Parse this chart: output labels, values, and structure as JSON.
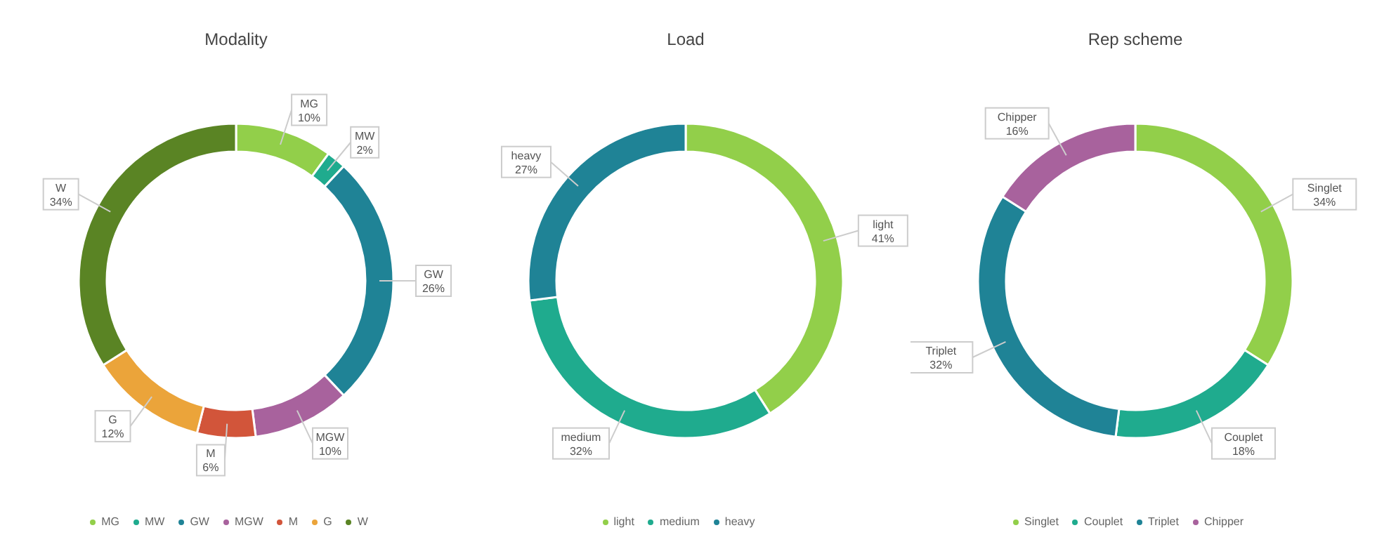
{
  "chart_data": [
    {
      "type": "donut",
      "title": "Modality",
      "categories": [
        "MG",
        "MW",
        "GW",
        "MGW",
        "M",
        "G",
        "W"
      ],
      "values": [
        10,
        2,
        26,
        10,
        6,
        12,
        34
      ],
      "value_labels": [
        "10%",
        "2%",
        "26%",
        "10%",
        "6%",
        "12%",
        "34%"
      ],
      "colors": [
        "#92cf4a",
        "#1fab8e",
        "#1f8396",
        "#a8629d",
        "#d2553a",
        "#eba43a",
        "#5a8424"
      ],
      "legend": "bottom"
    },
    {
      "type": "donut",
      "title": "Load",
      "categories": [
        "light",
        "medium",
        "heavy"
      ],
      "values": [
        41,
        32,
        27
      ],
      "value_labels": [
        "41%",
        "32%",
        "27%"
      ],
      "colors": [
        "#92cf4a",
        "#1fab8e",
        "#1f8396"
      ],
      "legend": "bottom"
    },
    {
      "type": "donut",
      "title": "Rep scheme",
      "categories": [
        "Singlet",
        "Couplet",
        "Triplet",
        "Chipper"
      ],
      "values": [
        34,
        18,
        32,
        16
      ],
      "value_labels": [
        "34%",
        "18%",
        "32%",
        "16%"
      ],
      "colors": [
        "#92cf4a",
        "#1fab8e",
        "#1f8396",
        "#a8629d"
      ],
      "legend": "bottom"
    }
  ]
}
